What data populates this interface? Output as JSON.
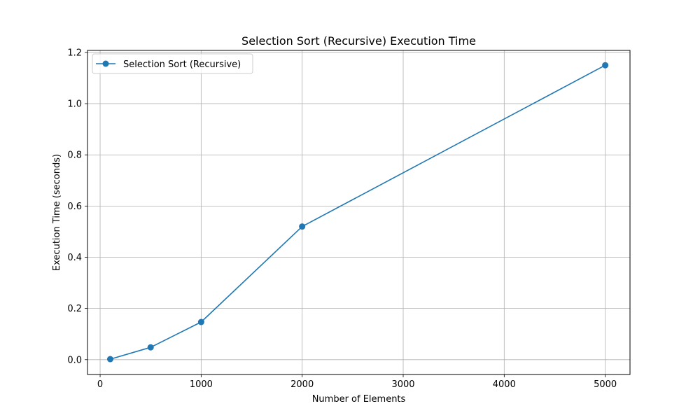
{
  "chart_data": {
    "type": "line",
    "title": "Selection Sort (Recursive) Execution Time",
    "xlabel": "Number of Elements",
    "ylabel": "Execution Time (seconds)",
    "xlim": [
      -125,
      5245
    ],
    "ylim": [
      -0.058,
      1.208
    ],
    "xticks": [
      0,
      1000,
      2000,
      3000,
      4000,
      5000
    ],
    "xtick_labels": [
      "0",
      "1000",
      "2000",
      "3000",
      "4000",
      "5000"
    ],
    "yticks": [
      0.0,
      0.2,
      0.4,
      0.6,
      0.8,
      1.0,
      1.2
    ],
    "ytick_labels": [
      "0.0",
      "0.2",
      "0.4",
      "0.6",
      "0.8",
      "1.0",
      "1.2"
    ],
    "grid": true,
    "legend_position": "top-left",
    "series": [
      {
        "name": "Selection Sort (Recursive)",
        "color": "#1f77b4",
        "marker": "circle",
        "x": [
          100,
          500,
          1000,
          2000,
          5000
        ],
        "y": [
          0.002,
          0.048,
          0.147,
          0.52,
          1.15
        ]
      }
    ]
  }
}
